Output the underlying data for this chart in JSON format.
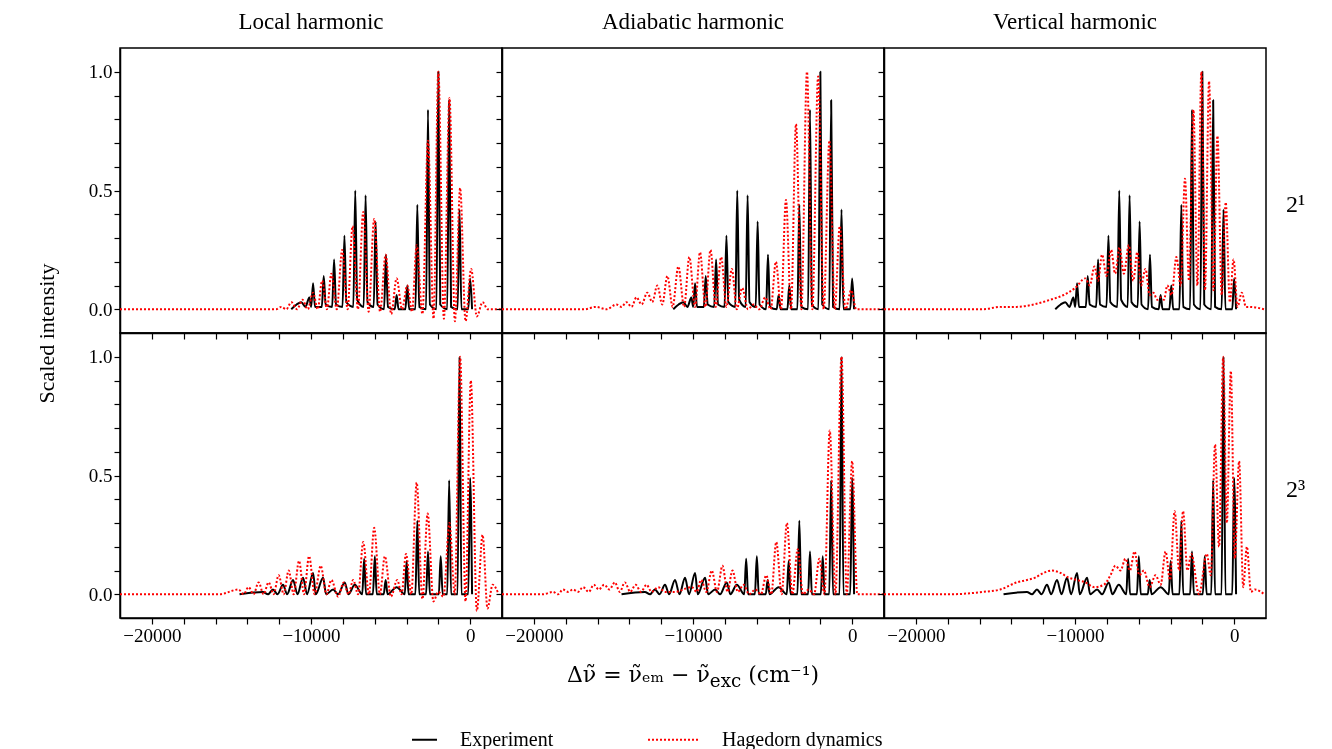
{
  "chart_data": [
    {
      "type": "line",
      "title": "Local harmonic",
      "ylabel": "Scaled intensity",
      "xlim": [
        -22000,
        2000
      ],
      "ylim": [
        -0.1,
        1.1
      ],
      "xticks": [
        {
          "value": -20000,
          "label": null
        },
        {
          "value": -18000,
          "label": null
        },
        {
          "value": -16000,
          "label": null
        },
        {
          "value": -14000,
          "label": null
        },
        {
          "value": -12000,
          "label": null
        },
        {
          "value": -10000,
          "label": null
        },
        {
          "value": -8000,
          "label": null
        },
        {
          "value": -6000,
          "label": null
        },
        {
          "value": -4000,
          "label": null
        },
        {
          "value": -2000,
          "label": null
        },
        {
          "value": 0,
          "label": null
        }
      ],
      "yticks": [
        {
          "value": 0,
          "label": "0.0"
        },
        {
          "value": 0.1,
          "label": null
        },
        {
          "value": 0.2,
          "label": null
        },
        {
          "value": 0.3,
          "label": null
        },
        {
          "value": 0.4,
          "label": null
        },
        {
          "value": 0.5,
          "label": "0.5"
        },
        {
          "value": 0.6,
          "label": null
        },
        {
          "value": 0.7,
          "label": null
        },
        {
          "value": 0.8,
          "label": null
        },
        {
          "value": 0.9,
          "label": null
        },
        {
          "value": 1,
          "label": "1.0"
        }
      ],
      "tick_labels": "y",
      "series": [
        {
          "color": "#000000",
          "line_style": "solid",
          "x": [
            -11240,
            -10900,
            -10610,
            -10350,
            -10100,
            -9990,
            -9870,
            -9750,
            -9320,
            -9200,
            -9080,
            -8670,
            -8550,
            -8430,
            -8020,
            -7900,
            -7780,
            -7340,
            -7220,
            -7100,
            -6690,
            -6570,
            -6450,
            -6060,
            -5940,
            -5820,
            -5410,
            -5290,
            -5170,
            -4740,
            -4620,
            -4500,
            -4070,
            -3950,
            -3830,
            -3440,
            -3320,
            -3200,
            -2770,
            -2650,
            -2530,
            -2120,
            -2000,
            -1880,
            -1440,
            -1320,
            -1200,
            -790,
            -670,
            -550,
            -120,
            0,
            120
          ],
          "values": [
            0,
            0.02,
            0.03,
            0.01,
            0.05,
            0.01,
            0.11,
            0.01,
            0.01,
            0.14,
            0.02,
            0.01,
            0.21,
            0.02,
            0.01,
            0.31,
            0.03,
            0.01,
            0.5,
            0.04,
            0.01,
            0.48,
            0.03,
            0.01,
            0.37,
            0.02,
            0,
            0.23,
            0.01,
            0,
            0.06,
            0,
            0,
            0.1,
            0,
            0,
            0.44,
            0.01,
            0,
            0.84,
            0.02,
            0,
            1.0,
            0.02,
            0,
            0.88,
            0.01,
            0,
            0.42,
            0,
            0,
            0.13,
            0
          ]
        },
        {
          "color": "#ff0000",
          "line_style": "dotted",
          "x": [
            -22000,
            -15000,
            -12180,
            -11870,
            -11550,
            -11240,
            -10870,
            -10540,
            -10200,
            -9870,
            -9580,
            -9300,
            -9000,
            -8720,
            -8380,
            -8040,
            -7700,
            -7390,
            -7050,
            -6720,
            -6380,
            -6030,
            -5660,
            -5310,
            -4960,
            -4620,
            -4280,
            -3950,
            -3650,
            -3360,
            -3000,
            -2650,
            -2300,
            -2000,
            -1650,
            -1300,
            -960,
            -630,
            -290,
            60,
            420,
            780,
            1100,
            2000
          ],
          "values": [
            0,
            0,
            0,
            0.01,
            0,
            0.03,
            0,
            0.04,
            0,
            0.07,
            0,
            0.12,
            0,
            0.15,
            0,
            0.25,
            0,
            0.35,
            0,
            0.41,
            -0.01,
            0.38,
            -0.01,
            0.23,
            -0.02,
            0.13,
            0,
            0.1,
            -0.01,
            0.27,
            -0.02,
            0.71,
            -0.04,
            1.0,
            -0.04,
            0.89,
            -0.05,
            0.51,
            -0.05,
            0.17,
            -0.03,
            0.03,
            0,
            0
          ]
        }
      ]
    },
    {
      "type": "line",
      "title": "Adiabatic harmonic",
      "xlim": [
        -22000,
        2000
      ],
      "ylim": [
        -0.1,
        1.1
      ],
      "xticks": [
        {
          "value": -20000,
          "label": null
        },
        {
          "value": -18000,
          "label": null
        },
        {
          "value": -16000,
          "label": null
        },
        {
          "value": -14000,
          "label": null
        },
        {
          "value": -12000,
          "label": null
        },
        {
          "value": -10000,
          "label": null
        },
        {
          "value": -8000,
          "label": null
        },
        {
          "value": -6000,
          "label": null
        },
        {
          "value": -4000,
          "label": null
        },
        {
          "value": -2000,
          "label": null
        },
        {
          "value": 0,
          "label": null
        }
      ],
      "yticks": [
        {
          "value": 0,
          "label": null
        },
        {
          "value": 0.1,
          "label": null
        },
        {
          "value": 0.2,
          "label": null
        },
        {
          "value": 0.3,
          "label": null
        },
        {
          "value": 0.4,
          "label": null
        },
        {
          "value": 0.5,
          "label": null
        },
        {
          "value": 0.6,
          "label": null
        },
        {
          "value": 0.7,
          "label": null
        },
        {
          "value": 0.8,
          "label": null
        },
        {
          "value": 0.9,
          "label": null
        },
        {
          "value": 1,
          "label": null
        }
      ],
      "tick_labels": false,
      "series": [
        {
          "color": "#000000",
          "line_style": "solid",
          "x": [
            -11240,
            -10900,
            -10610,
            -10350,
            -10100,
            -9990,
            -9870,
            -9750,
            -9320,
            -9200,
            -9080,
            -8670,
            -8550,
            -8430,
            -8020,
            -7900,
            -7780,
            -7340,
            -7220,
            -7100,
            -6690,
            -6570,
            -6450,
            -6060,
            -5940,
            -5820,
            -5410,
            -5290,
            -5170,
            -4740,
            -4620,
            -4500,
            -4070,
            -3950,
            -3830,
            -3440,
            -3320,
            -3200,
            -2770,
            -2650,
            -2530,
            -2120,
            -2000,
            -1880,
            -1440,
            -1320,
            -1200,
            -790,
            -670,
            -550,
            -120,
            0,
            120
          ],
          "values": [
            0,
            0.02,
            0.03,
            0.01,
            0.05,
            0.01,
            0.11,
            0.01,
            0.01,
            0.14,
            0.02,
            0.01,
            0.21,
            0.02,
            0.01,
            0.31,
            0.03,
            0.01,
            0.5,
            0.04,
            0.01,
            0.48,
            0.03,
            0.01,
            0.37,
            0.02,
            0,
            0.23,
            0.01,
            0,
            0.06,
            0,
            0,
            0.1,
            0,
            0,
            0.44,
            0.01,
            0,
            0.84,
            0.02,
            0,
            1.0,
            0.02,
            0,
            0.88,
            0.01,
            0,
            0.42,
            0,
            0,
            0.13,
            0
          ]
        },
        {
          "color": "#ff0000",
          "line_style": "dotted",
          "x": [
            -22000,
            -16800,
            -16110,
            -15440,
            -14810,
            -14490,
            -14180,
            -13860,
            -13550,
            -13230,
            -12870,
            -12560,
            -12240,
            -11930,
            -11610,
            -11280,
            -10920,
            -10560,
            -10230,
            -9870,
            -9560,
            -9220,
            -8900,
            -8570,
            -8230,
            -7900,
            -7560,
            -7250,
            -6910,
            -6550,
            -6200,
            -5840,
            -5460,
            -5120,
            -4790,
            -4470,
            -4160,
            -3840,
            -3530,
            -3190,
            -2840,
            -2500,
            -2140,
            -1790,
            -1430,
            -1090,
            -780,
            -420,
            -60,
            250,
            2000
          ],
          "values": [
            0,
            0,
            0.01,
            0,
            0.02,
            0.01,
            0.03,
            0.01,
            0.05,
            0.02,
            0.07,
            0.03,
            0.1,
            0.02,
            0.14,
            0.01,
            0.18,
            0.01,
            0.22,
            0.01,
            0.24,
            0.01,
            0.25,
            0.01,
            0.22,
            0.01,
            0.17,
            0,
            0.09,
            0,
            0.02,
            0,
            0.05,
            0,
            0.2,
            0,
            0.46,
            0,
            0.78,
            0,
            1.0,
            0,
            0.98,
            0,
            0.71,
            0,
            0.35,
            0,
            0.08,
            0,
            0
          ]
        }
      ]
    },
    {
      "type": "line",
      "title": "Vertical harmonic",
      "xlim": [
        -22000,
        2000
      ],
      "ylim": [
        -0.1,
        1.1
      ],
      "xticks": [
        {
          "value": -20000,
          "label": null
        },
        {
          "value": -18000,
          "label": null
        },
        {
          "value": -16000,
          "label": null
        },
        {
          "value": -14000,
          "label": null
        },
        {
          "value": -12000,
          "label": null
        },
        {
          "value": -10000,
          "label": null
        },
        {
          "value": -8000,
          "label": null
        },
        {
          "value": -6000,
          "label": null
        },
        {
          "value": -4000,
          "label": null
        },
        {
          "value": -2000,
          "label": null
        },
        {
          "value": 0,
          "label": null
        }
      ],
      "yticks": [
        {
          "value": 0,
          "label": null
        },
        {
          "value": 0.1,
          "label": null
        },
        {
          "value": 0.2,
          "label": null
        },
        {
          "value": 0.3,
          "label": null
        },
        {
          "value": 0.4,
          "label": null
        },
        {
          "value": 0.5,
          "label": null
        },
        {
          "value": 0.6,
          "label": null
        },
        {
          "value": 0.7,
          "label": null
        },
        {
          "value": 0.8,
          "label": null
        },
        {
          "value": 0.9,
          "label": null
        },
        {
          "value": 1,
          "label": null
        }
      ],
      "tick_labels": false,
      "annotations": [
        "2¹"
      ],
      "series": [
        {
          "color": "#000000",
          "line_style": "solid",
          "x": [
            -11240,
            -10900,
            -10610,
            -10350,
            -10100,
            -9990,
            -9870,
            -9750,
            -9320,
            -9200,
            -9080,
            -8670,
            -8550,
            -8430,
            -8020,
            -7900,
            -7780,
            -7340,
            -7220,
            -7100,
            -6690,
            -6570,
            -6450,
            -6060,
            -5940,
            -5820,
            -5410,
            -5290,
            -5170,
            -4740,
            -4620,
            -4500,
            -4070,
            -3950,
            -3830,
            -3440,
            -3320,
            -3200,
            -2770,
            -2650,
            -2530,
            -2120,
            -2000,
            -1880,
            -1440,
            -1320,
            -1200,
            -790,
            -670,
            -550,
            -120,
            0,
            120
          ],
          "values": [
            0,
            0.02,
            0.03,
            0.01,
            0.05,
            0.01,
            0.11,
            0.01,
            0.01,
            0.14,
            0.02,
            0.01,
            0.21,
            0.02,
            0.01,
            0.31,
            0.03,
            0.01,
            0.5,
            0.04,
            0.01,
            0.48,
            0.03,
            0.01,
            0.37,
            0.02,
            0,
            0.23,
            0.01,
            0,
            0.06,
            0,
            0,
            0.1,
            0,
            0,
            0.44,
            0.01,
            0,
            0.84,
            0.02,
            0,
            1.0,
            0.02,
            0,
            0.88,
            0.01,
            0,
            0.42,
            0,
            0,
            0.13,
            0
          ]
        },
        {
          "color": "#ff0000",
          "line_style": "dotted",
          "x": [
            -22000,
            -15750,
            -14700,
            -13650,
            -12600,
            -11550,
            -10710,
            -9980,
            -9350,
            -9070,
            -8780,
            -8550,
            -8300,
            -8020,
            -7730,
            -7480,
            -7200,
            -6930,
            -6620,
            -6340,
            -6090,
            -5840,
            -5570,
            -5310,
            -5080,
            -4830,
            -4620,
            -4410,
            -4200,
            -3930,
            -3630,
            -3360,
            -3090,
            -2840,
            -2560,
            -2310,
            -2060,
            -1830,
            -1580,
            -1300,
            -1050,
            -780,
            -530,
            -270,
            -40,
            210,
            480,
            740,
            950,
            1890
          ],
          "values": [
            0,
            0,
            0.01,
            0.01,
            0.02,
            0.04,
            0.06,
            0.09,
            0.13,
            0.1,
            0.18,
            0.12,
            0.23,
            0.14,
            0.25,
            0.15,
            0.26,
            0.15,
            0.27,
            0.12,
            0.24,
            0.1,
            0.17,
            0.06,
            0.07,
            0.04,
            0.05,
            0.04,
            0.1,
            0.06,
            0.22,
            0.1,
            0.55,
            0.12,
            0.84,
            0.1,
            1.0,
            0.08,
            0.96,
            0.08,
            0.73,
            0.06,
            0.45,
            0.03,
            0.21,
            0.01,
            0.07,
            0.01,
            0.01,
            0
          ]
        }
      ]
    },
    {
      "type": "line",
      "xlim": [
        -22000,
        2000
      ],
      "ylim": [
        -0.1,
        1.1
      ],
      "xticks": [
        {
          "value": -20000,
          "label": "−20000"
        },
        {
          "value": -18000,
          "label": null
        },
        {
          "value": -16000,
          "label": null
        },
        {
          "value": -14000,
          "label": null
        },
        {
          "value": -12000,
          "label": null
        },
        {
          "value": -10000,
          "label": "−10000"
        },
        {
          "value": -8000,
          "label": null
        },
        {
          "value": -6000,
          "label": null
        },
        {
          "value": -4000,
          "label": null
        },
        {
          "value": -2000,
          "label": null
        },
        {
          "value": 0,
          "label": "0"
        }
      ],
      "yticks": [
        {
          "value": 0,
          "label": "0.0"
        },
        {
          "value": 0.1,
          "label": null
        },
        {
          "value": 0.2,
          "label": null
        },
        {
          "value": 0.3,
          "label": null
        },
        {
          "value": 0.4,
          "label": null
        },
        {
          "value": 0.5,
          "label": "0.5"
        },
        {
          "value": 0.6,
          "label": null
        },
        {
          "value": 0.7,
          "label": null
        },
        {
          "value": 0.8,
          "label": null
        },
        {
          "value": 0.9,
          "label": null
        },
        {
          "value": 1,
          "label": "1.0"
        }
      ],
      "series": [
        {
          "color": "#000000",
          "line_style": "solid",
          "x": [
            -14490,
            -13020,
            -12700,
            -12390,
            -12100,
            -11760,
            -11500,
            -11130,
            -10850,
            -10500,
            -10250,
            -9870,
            -9700,
            -9240,
            -9050,
            -8610,
            -8300,
            -7880,
            -7650,
            -7250,
            -6780,
            -6660,
            -6540,
            -6110,
            -5990,
            -5870,
            -5430,
            -5310,
            -5190,
            -4620,
            -4110,
            -3990,
            -3870,
            -3440,
            -3320,
            -3200,
            -2770,
            -2650,
            -2530,
            -1970,
            -1850,
            -1730,
            -1440,
            -1320,
            -1200,
            -790,
            -670,
            -550,
            -120,
            0,
            120
          ],
          "values": [
            0,
            0.01,
            0,
            0.02,
            0,
            0.04,
            0,
            0.06,
            0,
            0.07,
            0,
            0.09,
            0,
            0.07,
            0,
            0.02,
            0,
            0.05,
            0,
            0.04,
            0,
            0.15,
            0,
            0,
            0.16,
            0,
            0,
            0.06,
            0,
            0.03,
            0,
            0.14,
            0,
            0,
            0.31,
            0,
            0,
            0.18,
            0,
            0,
            0.16,
            0,
            0,
            0.48,
            0,
            0,
            1.0,
            0,
            0,
            0.49,
            0
          ]
        },
        {
          "color": "#ff0000",
          "line_style": "dotted",
          "x": [
            -22000,
            -15750,
            -14550,
            -14240,
            -13920,
            -13610,
            -13290,
            -12980,
            -12660,
            -12350,
            -12030,
            -11720,
            -11400,
            -11090,
            -10750,
            -10440,
            -10120,
            -9770,
            -9390,
            -9030,
            -8720,
            -8300,
            -7940,
            -7640,
            -7350,
            -7040,
            -6720,
            -6360,
            -6030,
            -5670,
            -5360,
            -4980,
            -4580,
            -4310,
            -4030,
            -3700,
            -3360,
            -3000,
            -2670,
            -2310,
            -2000,
            -1680,
            -1300,
            -970,
            -630,
            -290,
            40,
            420,
            780,
            1090,
            1410,
            1790
          ],
          "values": [
            0,
            0,
            0.02,
            0,
            0.03,
            0,
            0.05,
            0,
            0.05,
            0,
            0.08,
            0,
            0.1,
            0,
            0.14,
            0,
            0.16,
            0,
            0.12,
            0,
            0.06,
            -0.01,
            0.05,
            0,
            0.06,
            0,
            0.22,
            0,
            0.28,
            0,
            0.16,
            -0.01,
            0.06,
            0,
            0.17,
            0,
            0.47,
            -0.02,
            0.34,
            -0.03,
            0.01,
            -0.01,
            0.3,
            0,
            1.0,
            -0.03,
            0.9,
            -0.07,
            0.25,
            -0.06,
            0.04,
            0
          ]
        }
      ]
    },
    {
      "type": "line",
      "xlabel": "Δν̃ = ν̃ₑₘ − ν̃$_{exc}$ (cm⁻¹)",
      "xlim": [
        -22000,
        2000
      ],
      "ylim": [
        -0.1,
        1.1
      ],
      "xticks": [
        {
          "value": -20000,
          "label": "−20000"
        },
        {
          "value": -18000,
          "label": null
        },
        {
          "value": -16000,
          "label": null
        },
        {
          "value": -14000,
          "label": null
        },
        {
          "value": -12000,
          "label": null
        },
        {
          "value": -10000,
          "label": "−10000"
        },
        {
          "value": -8000,
          "label": null
        },
        {
          "value": -6000,
          "label": null
        },
        {
          "value": -4000,
          "label": null
        },
        {
          "value": -2000,
          "label": null
        },
        {
          "value": 0,
          "label": "0"
        }
      ],
      "yticks": [
        {
          "value": 0,
          "label": null
        },
        {
          "value": 0.1,
          "label": null
        },
        {
          "value": 0.2,
          "label": null
        },
        {
          "value": 0.3,
          "label": null
        },
        {
          "value": 0.4,
          "label": null
        },
        {
          "value": 0.5,
          "label": null
        },
        {
          "value": 0.6,
          "label": null
        },
        {
          "value": 0.7,
          "label": null
        },
        {
          "value": 0.8,
          "label": null
        },
        {
          "value": 0.9,
          "label": null
        },
        {
          "value": 1,
          "label": null
        }
      ],
      "tick_labels": "x",
      "legend": "bottom",
      "series": [
        {
          "name": "Experiment",
          "color": "#000000",
          "line_style": "solid",
          "x": [
            -14490,
            -13020,
            -12700,
            -12390,
            -12100,
            -11760,
            -11500,
            -11130,
            -10850,
            -10500,
            -10250,
            -9870,
            -9700,
            -9240,
            -9050,
            -8610,
            -8300,
            -7880,
            -7650,
            -7250,
            -6780,
            -6660,
            -6540,
            -6110,
            -5990,
            -5870,
            -5430,
            -5310,
            -5190,
            -4620,
            -4110,
            -3990,
            -3870,
            -3440,
            -3320,
            -3200,
            -2770,
            -2650,
            -2530,
            -1970,
            -1850,
            -1730,
            -1440,
            -1320,
            -1200,
            -790,
            -670,
            -550,
            -120,
            0,
            120
          ],
          "values": [
            0,
            0.01,
            0,
            0.02,
            0,
            0.04,
            0,
            0.06,
            0,
            0.07,
            0,
            0.09,
            0,
            0.07,
            0,
            0.02,
            0,
            0.05,
            0,
            0.04,
            0,
            0.15,
            0,
            0,
            0.16,
            0,
            0,
            0.06,
            0,
            0.03,
            0,
            0.14,
            0,
            0,
            0.31,
            0,
            0,
            0.18,
            0,
            0,
            0.16,
            0,
            0,
            0.48,
            0,
            0,
            1.0,
            0,
            0,
            0.49,
            0
          ]
        },
        {
          "name": "Hagedorn dynamics",
          "color": "#ff0000",
          "line_style": "dotted",
          "x": [
            -22000,
            -20790,
            -19430,
            -18800,
            -18480,
            -18170,
            -17850,
            -17540,
            -17220,
            -16910,
            -16550,
            -16230,
            -15920,
            -15580,
            -15250,
            -14910,
            -14600,
            -14280,
            -13940,
            -13610,
            -13270,
            -12920,
            -12600,
            -12180,
            -11760,
            -11130,
            -10080,
            -9770,
            -9490,
            -9160,
            -8820,
            -8490,
            -8150,
            -7830,
            -7520,
            -7180,
            -6830,
            -6470,
            -6090,
            -5730,
            -5400,
            -5080,
            -4770,
            -4430,
            -4100,
            -3760,
            -3420,
            -3090,
            -2730,
            -2390,
            -2060,
            -1740,
            -1410,
            -1050,
            -670,
            -340,
            0,
            320,
            2000
          ],
          "values": [
            0,
            0,
            0,
            0.01,
            0,
            0.02,
            0.01,
            0.02,
            0.01,
            0.03,
            0.01,
            0.04,
            0.02,
            0.04,
            0.02,
            0.05,
            0.01,
            0.05,
            0.01,
            0.04,
            0.01,
            0.04,
            0.01,
            0.03,
            0.01,
            0.01,
            0.03,
            0.01,
            0.06,
            0.01,
            0.1,
            0.01,
            0.12,
            0.01,
            0.1,
            0.01,
            0.04,
            0,
            0.02,
            0,
            0.08,
            0,
            0.22,
            0,
            0.3,
            0,
            0.19,
            0,
            0.02,
            0,
            0.15,
            0,
            0.69,
            0,
            1.0,
            0,
            0.56,
            0,
            0
          ]
        }
      ]
    },
    {
      "type": "line",
      "xlim": [
        -22000,
        2000
      ],
      "ylim": [
        -0.1,
        1.1
      ],
      "xticks": [
        {
          "value": -20000,
          "label": "−20000"
        },
        {
          "value": -18000,
          "label": null
        },
        {
          "value": -16000,
          "label": null
        },
        {
          "value": -14000,
          "label": null
        },
        {
          "value": -12000,
          "label": null
        },
        {
          "value": -10000,
          "label": "−10000"
        },
        {
          "value": -8000,
          "label": null
        },
        {
          "value": -6000,
          "label": null
        },
        {
          "value": -4000,
          "label": null
        },
        {
          "value": -2000,
          "label": null
        },
        {
          "value": 0,
          "label": "0"
        }
      ],
      "yticks": [
        {
          "value": 0,
          "label": null
        },
        {
          "value": 0.1,
          "label": null
        },
        {
          "value": 0.2,
          "label": null
        },
        {
          "value": 0.3,
          "label": null
        },
        {
          "value": 0.4,
          "label": null
        },
        {
          "value": 0.5,
          "label": null
        },
        {
          "value": 0.6,
          "label": null
        },
        {
          "value": 0.7,
          "label": null
        },
        {
          "value": 0.8,
          "label": null
        },
        {
          "value": 0.9,
          "label": null
        },
        {
          "value": 1,
          "label": null
        }
      ],
      "tick_labels": "x",
      "annotations": [
        "2³"
      ],
      "series": [
        {
          "color": "#000000",
          "line_style": "solid",
          "x": [
            -14490,
            -13020,
            -12700,
            -12390,
            -12100,
            -11760,
            -11500,
            -11130,
            -10850,
            -10500,
            -10250,
            -9870,
            -9700,
            -9240,
            -9050,
            -8610,
            -8300,
            -7880,
            -7650,
            -7250,
            -6780,
            -6660,
            -6540,
            -6110,
            -5990,
            -5870,
            -5430,
            -5310,
            -5190,
            -4620,
            -4110,
            -3990,
            -3870,
            -3440,
            -3320,
            -3200,
            -2770,
            -2650,
            -2530,
            -1970,
            -1850,
            -1730,
            -1440,
            -1320,
            -1200,
            -790,
            -670,
            -550,
            -120,
            0,
            120
          ],
          "values": [
            0,
            0.01,
            0,
            0.02,
            0,
            0.04,
            0,
            0.06,
            0,
            0.07,
            0,
            0.09,
            0,
            0.07,
            0,
            0.02,
            0,
            0.05,
            0,
            0.04,
            0,
            0.15,
            0,
            0,
            0.16,
            0,
            0,
            0.06,
            0,
            0.03,
            0,
            0.14,
            0,
            0,
            0.31,
            0,
            0,
            0.18,
            0,
            0,
            0.16,
            0,
            0,
            0.48,
            0,
            0,
            1.0,
            0,
            0,
            0.49,
            0
          ]
        },
        {
          "color": "#ff0000",
          "line_style": "dotted",
          "x": [
            -22000,
            -17850,
            -15750,
            -14700,
            -13650,
            -13020,
            -12500,
            -11970,
            -11450,
            -10920,
            -10400,
            -9870,
            -9350,
            -8780,
            -8190,
            -7770,
            -7460,
            -7140,
            -6830,
            -6550,
            -6260,
            -5960,
            -5670,
            -5310,
            -4940,
            -4620,
            -4310,
            -4030,
            -3740,
            -3460,
            -3210,
            -2940,
            -2690,
            -2210,
            -1720,
            -1470,
            -1200,
            -950,
            -690,
            -460,
            -210,
            40,
            310,
            570,
            800,
            1050,
            1300,
            1890
          ],
          "values": [
            0,
            0,
            0.01,
            0.02,
            0.05,
            0.06,
            0.07,
            0.09,
            0.1,
            0.09,
            0.07,
            0.06,
            0.05,
            0.03,
            0.04,
            0.08,
            0.12,
            0.1,
            0.15,
            0.1,
            0.18,
            0.08,
            0.1,
            0.03,
            0.08,
            0.04,
            0.18,
            0.06,
            0.35,
            0.1,
            0.35,
            0.1,
            0.17,
            0,
            0.17,
            0.08,
            0.63,
            0.2,
            1.0,
            0.3,
            0.94,
            0.15,
            0.56,
            0.03,
            0.2,
            0.01,
            0.02,
            0
          ]
        }
      ]
    }
  ]
}
